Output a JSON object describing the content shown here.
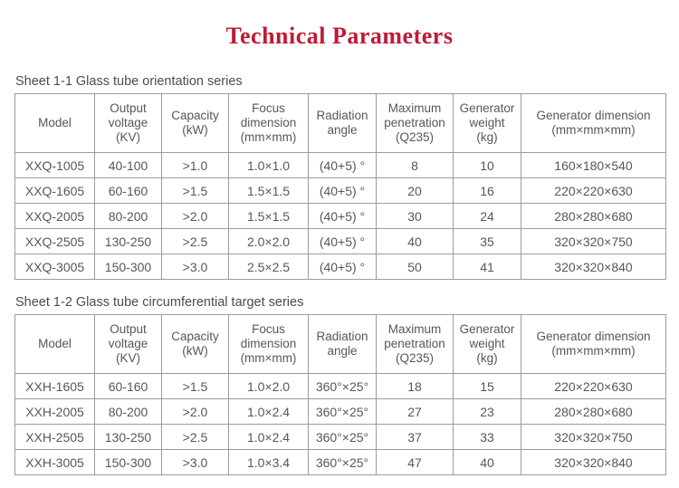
{
  "title": {
    "text": "Technical Parameters"
  },
  "colors": {
    "accent": "#c01a35",
    "text": "#58585a",
    "border": "#9c9c9c",
    "background": "#ffffff"
  },
  "tables": [
    {
      "caption": "Sheet 1-1 Glass tube orientation series",
      "headers": [
        "Model",
        "Output\nvoltage\n(KV)",
        "Capacity\n(kW)",
        "Focus\ndimension\n(mm×mm)",
        "Radiation\nangle",
        "Maximum\npenetration\n(Q235)",
        "Generator\nweight\n(kg)",
        "Generator dimension\n(mm×mm×mm)"
      ],
      "rows": [
        [
          "XXQ-1005",
          "40-100",
          ">1.0",
          "1.0×1.0",
          "(40+5) °",
          "8",
          "10",
          "160×180×540"
        ],
        [
          "XXQ-1605",
          "60-160",
          ">1.5",
          "1.5×1.5",
          "(40+5) °",
          "20",
          "16",
          "220×220×630"
        ],
        [
          "XXQ-2005",
          "80-200",
          ">2.0",
          "1.5×1.5",
          "(40+5) °",
          "30",
          "24",
          "280×280×680"
        ],
        [
          "XXQ-2505",
          "130-250",
          ">2.5",
          "2.0×2.0",
          "(40+5) °",
          "40",
          "35",
          "320×320×750"
        ],
        [
          "XXQ-3005",
          "150-300",
          ">3.0",
          "2.5×2.5",
          "(40+5) °",
          "50",
          "41",
          "320×320×840"
        ]
      ]
    },
    {
      "caption": "Sheet 1-2 Glass tube circumferential target series",
      "headers": [
        "Model",
        "Output\nvoltage\n(KV)",
        "Capacity\n(kW)",
        "Focus\ndimension\n(mm×mm)",
        "Radiation\nangle",
        "Maximum\npenetration\n(Q235)",
        "Generator\nweight\n(kg)",
        "Generator dimension\n(mm×mm×mm)"
      ],
      "rows": [
        [
          "XXH-1605",
          "60-160",
          ">1.5",
          "1.0×2.0",
          "360°×25°",
          "18",
          "15",
          "220×220×630"
        ],
        [
          "XXH-2005",
          "80-200",
          ">2.0",
          "1.0×2.4",
          "360°×25°",
          "27",
          "23",
          "280×280×680"
        ],
        [
          "XXH-2505",
          "130-250",
          ">2.5",
          "1.0×2.4",
          "360°×25°",
          "37",
          "33",
          "320×320×750"
        ],
        [
          "XXH-3005",
          "150-300",
          ">3.0",
          "1.0×3.4",
          "360°×25°",
          "47",
          "40",
          "320×320×840"
        ]
      ]
    }
  ]
}
